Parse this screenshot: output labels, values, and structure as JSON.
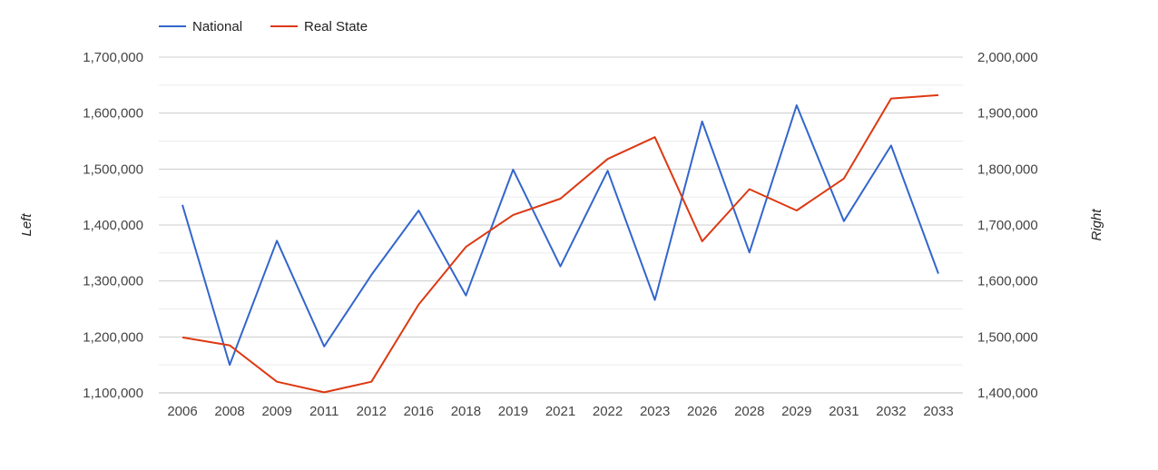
{
  "chart_data": {
    "type": "line",
    "categories": [
      "2006",
      "2008",
      "2009",
      "2011",
      "2012",
      "2016",
      "2018",
      "2019",
      "2021",
      "2022",
      "2023",
      "2026",
      "2028",
      "2029",
      "2031",
      "2032",
      "2033"
    ],
    "series": [
      {
        "name": "National",
        "axis": "left",
        "color": "#3366cc",
        "values": [
          1436000,
          1150000,
          1372000,
          1183000,
          1311000,
          1426000,
          1274000,
          1499000,
          1326000,
          1497000,
          1266000,
          1585000,
          1351000,
          1614000,
          1407000,
          1542000,
          1313000
        ]
      },
      {
        "name": "Real State",
        "axis": "right",
        "color": "#dc3912",
        "values": [
          1499000,
          1485000,
          1420000,
          1401000,
          1420000,
          1558000,
          1661000,
          1718000,
          1747000,
          1818000,
          1857000,
          1671000,
          1764000,
          1726000,
          1783000,
          1926000,
          1932000
        ]
      }
    ],
    "left_axis": {
      "title": "Left",
      "min": 1100000,
      "max": 1700000,
      "ticks": [
        "1,100,000",
        "1,200,000",
        "1,300,000",
        "1,400,000",
        "1,500,000",
        "1,600,000",
        "1,700,000"
      ]
    },
    "right_axis": {
      "title": "Right",
      "min": 1400000,
      "max": 2000000,
      "ticks": [
        "1,400,000",
        "1,500,000",
        "1,600,000",
        "1,700,000",
        "1,800,000",
        "1,900,000",
        "2,000,000"
      ]
    },
    "grid": true,
    "legend_position": "top-left"
  }
}
